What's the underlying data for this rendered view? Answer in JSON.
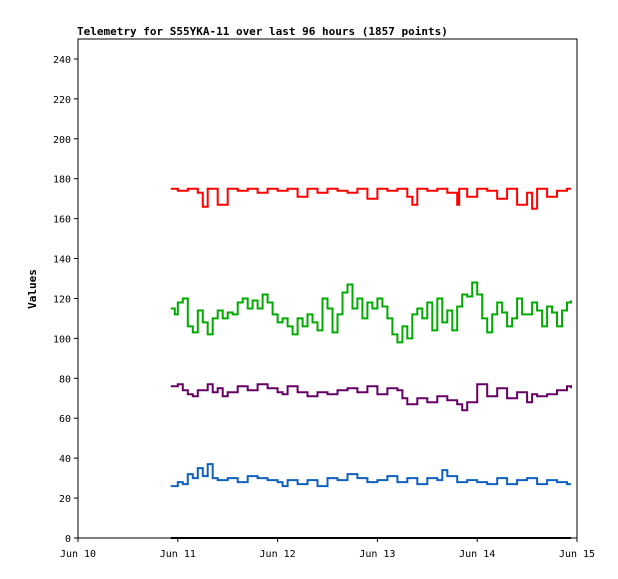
{
  "chart_data": {
    "type": "line",
    "title": "Telemetry for S55YKA-11 over last 96 hours (1857 points)",
    "xlabel": "",
    "ylabel": "Values",
    "xlim": [
      0,
      5
    ],
    "ylim": [
      0,
      250
    ],
    "x_ticks": [
      {
        "value": 0,
        "label": "Jun 10"
      },
      {
        "value": 1,
        "label": "Jun 11"
      },
      {
        "value": 2,
        "label": "Jun 12"
      },
      {
        "value": 3,
        "label": "Jun 13"
      },
      {
        "value": 4,
        "label": "Jun 14"
      },
      {
        "value": 5,
        "label": "Jun 15"
      }
    ],
    "y_ticks": [
      0,
      20,
      40,
      60,
      80,
      100,
      120,
      140,
      160,
      180,
      200,
      220,
      240
    ],
    "grid": false,
    "series": [
      {
        "color": "#ff0000",
        "x": [
          0.93,
          1.0,
          1.1,
          1.2,
          1.25,
          1.3,
          1.4,
          1.5,
          1.6,
          1.7,
          1.8,
          1.9,
          2.0,
          2.1,
          2.2,
          2.3,
          2.4,
          2.5,
          2.6,
          2.7,
          2.8,
          2.9,
          3.0,
          3.1,
          3.2,
          3.3,
          3.35,
          3.4,
          3.5,
          3.6,
          3.7,
          3.8,
          3.82,
          3.9,
          4.0,
          4.1,
          4.2,
          4.3,
          4.4,
          4.5,
          4.55,
          4.6,
          4.7,
          4.8,
          4.9,
          4.94
        ],
        "y": [
          175,
          174,
          175,
          173,
          166,
          175,
          167,
          175,
          174,
          175,
          173,
          175,
          174,
          175,
          171,
          175,
          173,
          175,
          174,
          173,
          175,
          170,
          175,
          174,
          175,
          171,
          167,
          175,
          174,
          175,
          173,
          167,
          175,
          171,
          175,
          174,
          170,
          175,
          167,
          173,
          165,
          175,
          171,
          174,
          175,
          175
        ]
      },
      {
        "color": "#00aa00",
        "x": [
          0.93,
          0.97,
          1.0,
          1.05,
          1.1,
          1.15,
          1.2,
          1.25,
          1.3,
          1.35,
          1.4,
          1.45,
          1.5,
          1.55,
          1.6,
          1.65,
          1.7,
          1.75,
          1.8,
          1.85,
          1.9,
          1.95,
          2.0,
          2.05,
          2.1,
          2.15,
          2.2,
          2.25,
          2.3,
          2.35,
          2.4,
          2.45,
          2.5,
          2.55,
          2.6,
          2.65,
          2.7,
          2.75,
          2.8,
          2.85,
          2.9,
          2.95,
          3.0,
          3.05,
          3.1,
          3.15,
          3.2,
          3.25,
          3.3,
          3.35,
          3.4,
          3.45,
          3.5,
          3.55,
          3.6,
          3.65,
          3.7,
          3.75,
          3.8,
          3.85,
          3.9,
          3.95,
          4.0,
          4.05,
          4.1,
          4.15,
          4.2,
          4.25,
          4.3,
          4.35,
          4.4,
          4.45,
          4.5,
          4.55,
          4.6,
          4.65,
          4.7,
          4.75,
          4.8,
          4.85,
          4.9,
          4.94
        ],
        "y": [
          115,
          112,
          118,
          120,
          106,
          103,
          114,
          108,
          102,
          110,
          114,
          110,
          113,
          112,
          118,
          120,
          115,
          119,
          115,
          122,
          118,
          112,
          108,
          110,
          106,
          102,
          110,
          106,
          112,
          108,
          104,
          120,
          115,
          103,
          112,
          123,
          127,
          115,
          120,
          110,
          118,
          115,
          120,
          116,
          110,
          102,
          98,
          106,
          100,
          112,
          115,
          110,
          118,
          104,
          120,
          108,
          114,
          104,
          116,
          122,
          121,
          128,
          122,
          110,
          103,
          112,
          118,
          113,
          106,
          110,
          120,
          112,
          112,
          118,
          114,
          106,
          116,
          113,
          106,
          114,
          118,
          119
        ]
      },
      {
        "color": "#660066",
        "x": [
          0.93,
          1.0,
          1.05,
          1.1,
          1.15,
          1.2,
          1.3,
          1.35,
          1.4,
          1.45,
          1.5,
          1.6,
          1.7,
          1.8,
          1.9,
          2.0,
          2.05,
          2.1,
          2.2,
          2.3,
          2.4,
          2.5,
          2.6,
          2.7,
          2.8,
          2.9,
          3.0,
          3.1,
          3.2,
          3.25,
          3.3,
          3.4,
          3.5,
          3.6,
          3.7,
          3.8,
          3.85,
          3.9,
          4.0,
          4.1,
          4.2,
          4.3,
          4.4,
          4.5,
          4.55,
          4.6,
          4.7,
          4.8,
          4.9,
          4.94
        ],
        "y": [
          76,
          77,
          74,
          72,
          71,
          74,
          77,
          73,
          75,
          71,
          73,
          76,
          74,
          77,
          75,
          73,
          72,
          76,
          73,
          71,
          73,
          72,
          74,
          75,
          73,
          76,
          72,
          75,
          74,
          70,
          67,
          70,
          68,
          71,
          69,
          67,
          64,
          68,
          77,
          71,
          75,
          70,
          73,
          68,
          72,
          71,
          72,
          74,
          76,
          75
        ]
      },
      {
        "color": "#1060c0",
        "x": [
          0.93,
          1.0,
          1.05,
          1.1,
          1.15,
          1.2,
          1.25,
          1.3,
          1.35,
          1.4,
          1.5,
          1.6,
          1.7,
          1.8,
          1.9,
          2.0,
          2.05,
          2.1,
          2.2,
          2.3,
          2.4,
          2.5,
          2.6,
          2.7,
          2.8,
          2.9,
          3.0,
          3.1,
          3.2,
          3.3,
          3.4,
          3.5,
          3.6,
          3.65,
          3.7,
          3.8,
          3.9,
          4.0,
          4.1,
          4.2,
          4.3,
          4.4,
          4.5,
          4.6,
          4.7,
          4.8,
          4.9,
          4.94
        ],
        "y": [
          26,
          28,
          27,
          32,
          30,
          35,
          31,
          37,
          30,
          29,
          30,
          28,
          31,
          30,
          29,
          28,
          26,
          29,
          27,
          29,
          26,
          30,
          29,
          32,
          30,
          28,
          29,
          31,
          28,
          30,
          27,
          30,
          29,
          34,
          31,
          28,
          29,
          28,
          27,
          30,
          27,
          29,
          30,
          27,
          29,
          28,
          27,
          27
        ]
      },
      {
        "color": "#000000",
        "x": [
          0.93,
          4.94
        ],
        "y": [
          0,
          0
        ]
      }
    ]
  }
}
